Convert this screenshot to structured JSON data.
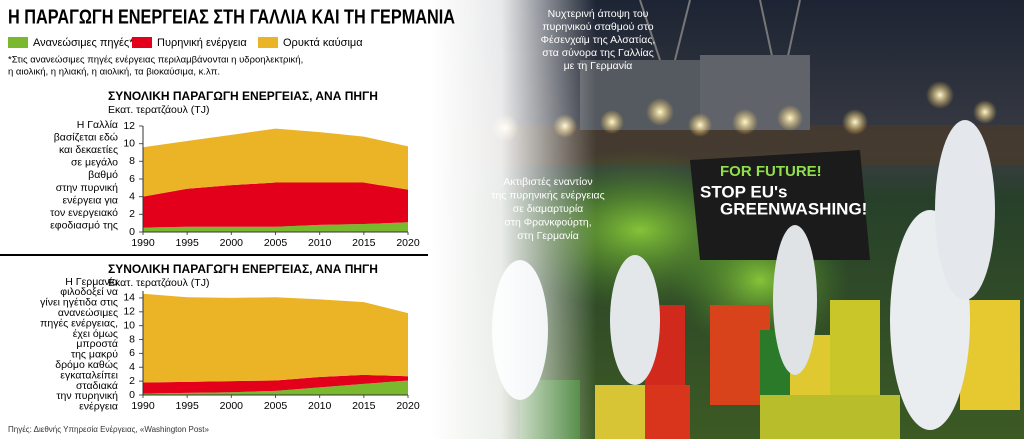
{
  "title": "Η ΠΑΡΑΓΩΓΗ ΕΝΕΡΓΕΙΑΣ ΣΤΗ ΓΑΛΛΙΑ ΚΑΙ ΤΗ ΓΕΡΜΑΝΙΑ",
  "footnote": [
    "*Στις ανανεώσιμες πηγές ενέργειας περιλαμβάνονται η υδροηλεκτρική,",
    "η αιολική, η ηλιακή, η αιολική, τα βιοκαύσιμα, κ.λπ."
  ],
  "source": "Πηγές: Διεθνής Υπηρεσία Ενέργειας, «Washington Post»",
  "photo_captions": [
    [
      "Νυχτερινή άποψη του",
      "πυρηνικού σταθμού στο",
      "Φέσενχαϊμ της Αλσατίας,",
      "στα σύνορα της Γαλλίας",
      "με τη Γερμανία"
    ],
    [
      "Ακτιβιστές εναντίον",
      "της πυρηνικής ενέργειας",
      "σε διαμαρτυρία",
      "στη Φρανκφούρτη,",
      "στη Γερμανία"
    ]
  ],
  "banners": [
    "FOR FUTURE!",
    "STOP EU's",
    "GREENWASHING!"
  ],
  "chart_data": [
    {
      "type": "area",
      "title": "ΣΥΝΟΛΙΚΗ ΠΑΡΑΓΩΓΗ ΕΝΕΡΓΕΙΑΣ, ΑΝΑ ΠΗΓΗ",
      "subtitle": "Εκατ. τερατζάουλ (TJ)",
      "note": [
        "Η Γαλλία",
        "βασίζεται εδώ",
        "και δεκαετίες",
        "σε μεγάλο",
        "βαθμό",
        "στην πυρνική",
        "ενέργεια για",
        "τον ενεργειακό",
        "εφοδιασμό της"
      ],
      "x": [
        1990,
        1995,
        2000,
        2005,
        2010,
        2015,
        2020
      ],
      "xlim": [
        1990,
        2020
      ],
      "xticks": [
        1990,
        1995,
        2000,
        2005,
        2010,
        2015,
        2020
      ],
      "ylim": [
        0,
        12
      ],
      "yticks": [
        0,
        2,
        4,
        6,
        8,
        10,
        12
      ],
      "stacked": true,
      "series": [
        {
          "name": "Ανανεώσιμες πηγές*",
          "color": "#7ab830",
          "values": [
            0.5,
            0.6,
            0.6,
            0.6,
            0.8,
            0.9,
            1.1
          ]
        },
        {
          "name": "Πυρηνική ενέργεια",
          "color": "#e2001a",
          "values": [
            3.5,
            4.3,
            4.7,
            5.0,
            4.8,
            4.7,
            3.7
          ]
        },
        {
          "name": "Ορυκτά καύσιμα",
          "color": "#ebb326",
          "values": [
            5.6,
            5.4,
            5.7,
            6.1,
            5.7,
            5.2,
            4.9
          ]
        }
      ]
    },
    {
      "type": "area",
      "title": "ΣΥΝΟΛΙΚΗ ΠΑΡΑΓΩΓΗ ΕΝΕΡΓΕΙΑΣ, ΑΝΑ ΠΗΓΗ",
      "subtitle": "Εκατ. τερατζάουλ (TJ)",
      "note": [
        "Η Γερμανία",
        "φιλοδοξεί να",
        "γίνει ηγέτιδα στις",
        "ανανεώσιμες",
        "πηγές ενέργειας,",
        "έχει όμως",
        "μπροστά",
        "της μακρύ",
        "δρόμο καθώς",
        "εγκαταλείπει",
        "σταδιακά",
        "την πυρηνική",
        "ενέργεια"
      ],
      "x": [
        1990,
        1995,
        2000,
        2005,
        2010,
        2015,
        2020
      ],
      "xlim": [
        1990,
        2020
      ],
      "xticks": [
        1990,
        1995,
        2000,
        2005,
        2010,
        2015,
        2020
      ],
      "ylim": [
        0,
        15
      ],
      "yticks": [
        0,
        2,
        4,
        6,
        8,
        10,
        12,
        14
      ],
      "stacked": true,
      "series": [
        {
          "color": "#7ab830",
          "values": [
            0.2,
            0.3,
            0.4,
            0.6,
            1.1,
            1.6,
            2.1
          ]
        },
        {
          "color": "#e2001a",
          "values": [
            1.6,
            1.6,
            1.6,
            1.5,
            1.5,
            1.3,
            0.6
          ]
        },
        {
          "color": "#ebb326",
          "values": [
            12.8,
            12.2,
            12.0,
            12.0,
            11.2,
            10.5,
            9.1
          ]
        }
      ]
    }
  ]
}
